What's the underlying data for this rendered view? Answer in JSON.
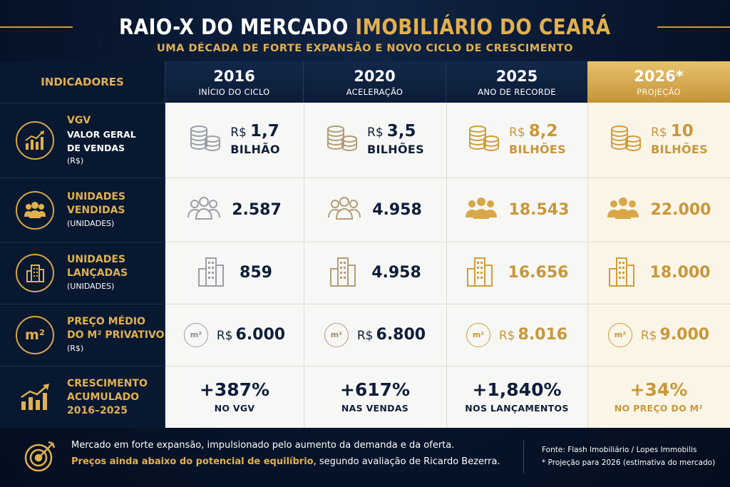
{
  "header": {
    "title_white": "RAIO-X DO MERCADO",
    "title_gold": "IMOBILIÁRIO DO CEARÁ",
    "subtitle": "UMA DÉCADA DE FORTE EXPANSÃO E NOVO CICLO DE CRESCIMENTO"
  },
  "table": {
    "indicators_label": "INDICADORES",
    "columns": [
      {
        "year": "2016",
        "label": "INÍCIO DO CICLO"
      },
      {
        "year": "2020",
        "label": "ACELERAÇÃO"
      },
      {
        "year": "2025",
        "label": "ANO DE RECORDE"
      },
      {
        "year": "2026*",
        "label": "PROJEÇÃO"
      }
    ],
    "rows": {
      "vgv": {
        "title": "VGV",
        "subtitle_1": "VALOR GERAL",
        "subtitle_2": "DE VENDAS",
        "unit": "(R$)",
        "icon": "bar-chart-up-icon",
        "values": [
          {
            "currency": "R$",
            "value": "1,7",
            "unit": "BILHÃO"
          },
          {
            "currency": "R$",
            "value": "3,5",
            "unit": "BILHÕES"
          },
          {
            "currency": "R$",
            "value": "8,2",
            "unit": "BILHÕES"
          },
          {
            "currency": "R$",
            "value": "10",
            "unit": "BILHÕES"
          }
        ]
      },
      "sold": {
        "title_1": "UNIDADES",
        "title_2": "VENDIDAS",
        "unit": "(UNIDADES)",
        "icon": "people-icon",
        "values": [
          "2.587",
          "4.958",
          "18.543",
          "22.000"
        ]
      },
      "launched": {
        "title_1": "UNIDADES",
        "title_2": "LANÇADAS",
        "unit": "(UNIDADES)",
        "icon": "building-icon",
        "values": [
          "859",
          "4.958",
          "16.656",
          "18.000"
        ]
      },
      "price": {
        "title_1": "PREÇO MÉDIO",
        "title_2": "DO M² PRIVATIVO",
        "unit": "(R$)",
        "icon_text": "m²",
        "badge": "m²",
        "values": [
          {
            "currency": "R$",
            "value": "6.000"
          },
          {
            "currency": "R$",
            "value": "6.800"
          },
          {
            "currency": "R$",
            "value": "8.016"
          },
          {
            "currency": "R$",
            "value": "9.000"
          }
        ]
      },
      "growth": {
        "title_1": "CRESCIMENTO",
        "title_2": "ACUMULADO",
        "title_3": "2016–2025",
        "icon": "growth-chart-icon",
        "values": [
          {
            "value": "+387%",
            "label": "NO VGV"
          },
          {
            "value": "+617%",
            "label": "NAS VENDAS"
          },
          {
            "value": "+1,840%",
            "label": "NOS LANÇAMENTOS"
          },
          {
            "value": "+34%",
            "label": "NO PREÇO DO M²"
          }
        ]
      }
    }
  },
  "footer": {
    "line1": "Mercado em forte expansão, impulsionado pelo aumento da demanda e da oferta.",
    "line2_highlight": "Preços ainda abaixo do potencial de equilíbrio",
    "line2_rest": ", segundo avaliação de Ricardo Bezerra.",
    "source": "Fonte: Flash Imobiliário / Lopes Immobilis",
    "note": "* Projeção para 2026 (estimativa do mercado)",
    "icon": "target-icon"
  },
  "colors": {
    "navy": "#0e1e3a",
    "gold": "#c9973a",
    "background": "#07142a",
    "accent_gold": "#e1b04f"
  }
}
